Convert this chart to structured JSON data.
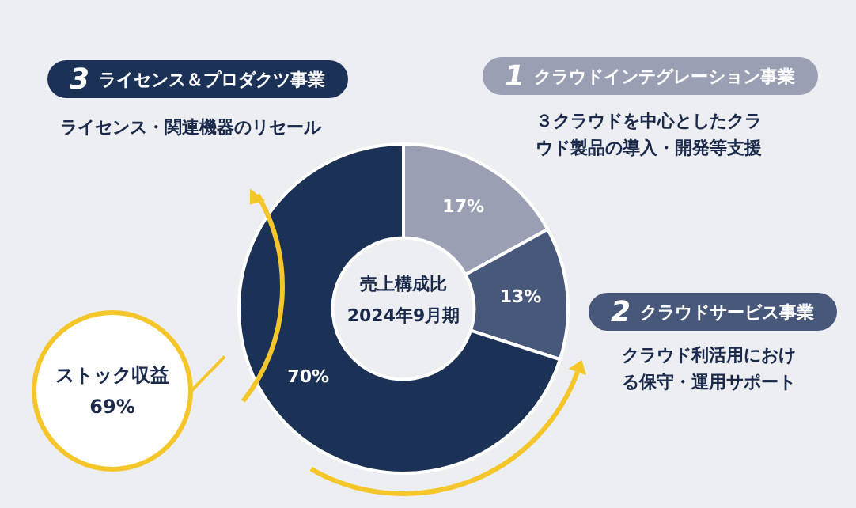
{
  "chart_data": {
    "type": "donut",
    "title": "売上構成比\n2024年9月期",
    "categories": [
      "1 クラウドインテグレーション事業",
      "2 クラウドサービス事業",
      "3 ライセンス＆プロダクツ事業"
    ],
    "values": [
      17,
      13,
      70
    ],
    "colors": [
      "#9a9fb4",
      "#48587a",
      "#1b3156"
    ],
    "value_labels": [
      "17%",
      "13%",
      "70%"
    ],
    "annotations": [
      "３クラウドを中心としたクラウド製品の導入・開発等支援",
      "クラウド利活用における保守・運用サポート",
      "ライセンス・関連機器のリセール",
      "ストック収益\n69%"
    ],
    "legend": false
  }
}
